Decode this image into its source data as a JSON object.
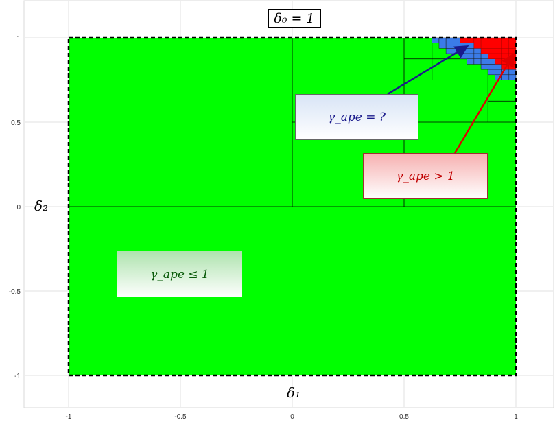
{
  "chart_data": {
    "type": "heatmap",
    "title": "δ₀ = 1",
    "xlabel": "δ₁",
    "ylabel": "δ₂",
    "xlim": [
      -1.2,
      1.2
    ],
    "ylim": [
      -1.2,
      1.2
    ],
    "xticks": [
      "-1",
      "-0.5",
      "0",
      "0.5",
      "1"
    ],
    "yticks": [
      "1",
      "0.5",
      "0",
      "-0.5",
      "-1"
    ],
    "grid": true,
    "domain_box": {
      "x": [
        -1,
        1
      ],
      "y": [
        -1,
        1
      ]
    },
    "annotations": {
      "unknown": "γ_ape = ?",
      "greater": "γ_ape > 1",
      "less_equal": "γ_ape ≤ 1"
    },
    "colors": {
      "le": "#00ff00",
      "unknown": "#3b7be8",
      "gt": "#ff0000",
      "unknown_label": "#1a1a8c",
      "gt_label": "#c00000",
      "le_label": "#0a5a0a"
    }
  }
}
